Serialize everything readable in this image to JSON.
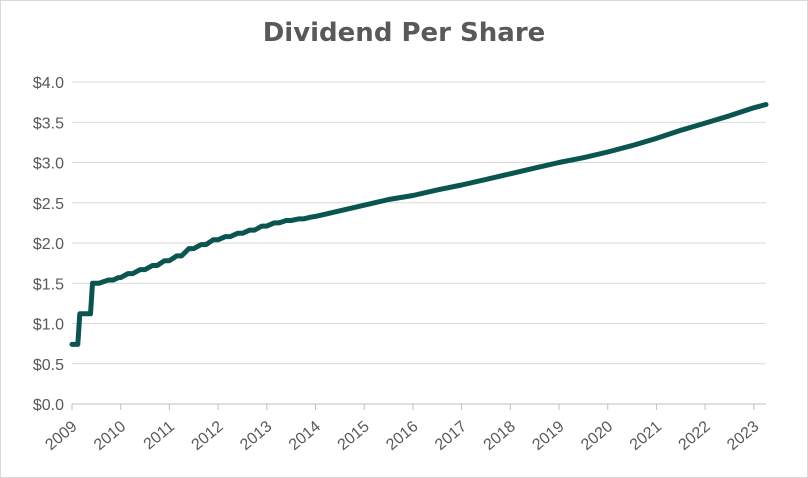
{
  "chart_data": {
    "type": "line",
    "title": "Dividend Per Share",
    "xlabel": "",
    "ylabel": "",
    "ylim": [
      0,
      4.0
    ],
    "y_ticks": [
      "$0.0",
      "$0.5",
      "$1.0",
      "$1.5",
      "$2.0",
      "$2.5",
      "$3.0",
      "$3.5",
      "$4.0"
    ],
    "y_tick_values": [
      0,
      0.5,
      1.0,
      1.5,
      2.0,
      2.5,
      3.0,
      3.5,
      4.0
    ],
    "x_ticks": [
      "2009",
      "2010",
      "2011",
      "2012",
      "2013",
      "2014",
      "2015",
      "2016",
      "2017",
      "2018",
      "2019",
      "2020",
      "2021",
      "2022",
      "2023"
    ],
    "x_tick_values": [
      2009,
      2010,
      2011,
      2012,
      2013,
      2014,
      2015,
      2016,
      2017,
      2018,
      2019,
      2020,
      2021,
      2022,
      2023
    ],
    "xlim": [
      2009,
      2023.25
    ],
    "grid": true,
    "line_color": "#0b5550",
    "series": [
      {
        "x": [
          2009.0,
          2009.12,
          2009.16,
          2009.38,
          2009.42,
          2009.55,
          2009.65,
          2009.75,
          2009.85,
          2009.95,
          2010.0,
          2010.15,
          2010.25,
          2010.4,
          2010.5,
          2010.65,
          2010.75,
          2010.9,
          2011.0,
          2011.15,
          2011.25,
          2011.4,
          2011.5,
          2011.65,
          2011.75,
          2011.9,
          2012.0,
          2012.15,
          2012.25,
          2012.4,
          2012.5,
          2012.65,
          2012.75,
          2012.9,
          2013.0,
          2013.15,
          2013.25,
          2013.4,
          2013.5,
          2013.65,
          2013.75,
          2013.9,
          2014.0,
          2014.5,
          2015.0,
          2015.5,
          2016.0,
          2016.5,
          2017.0,
          2017.5,
          2018.0,
          2018.5,
          2019.0,
          2019.5,
          2020.0,
          2020.5,
          2021.0,
          2021.5,
          2022.0,
          2022.5,
          2023.0,
          2023.25
        ],
        "y": [
          0.74,
          0.74,
          1.12,
          1.12,
          1.5,
          1.5,
          1.52,
          1.54,
          1.54,
          1.57,
          1.57,
          1.62,
          1.62,
          1.67,
          1.67,
          1.72,
          1.72,
          1.78,
          1.78,
          1.84,
          1.84,
          1.93,
          1.93,
          1.98,
          1.98,
          2.04,
          2.04,
          2.08,
          2.08,
          2.12,
          2.12,
          2.16,
          2.16,
          2.21,
          2.21,
          2.25,
          2.25,
          2.28,
          2.28,
          2.3,
          2.3,
          2.32,
          2.33,
          2.4,
          2.47,
          2.54,
          2.59,
          2.66,
          2.72,
          2.79,
          2.86,
          2.93,
          3.0,
          3.06,
          3.13,
          3.21,
          3.3,
          3.4,
          3.49,
          3.58,
          3.68,
          3.72
        ]
      }
    ]
  }
}
